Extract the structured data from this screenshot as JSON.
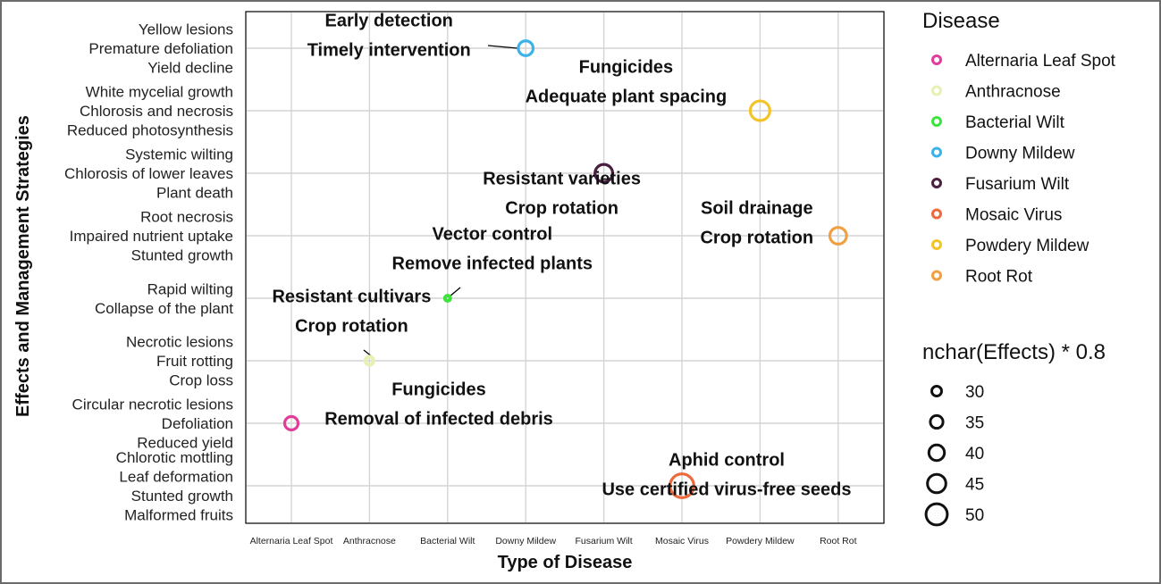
{
  "chart_data": {
    "type": "scatter",
    "xlabel": "Type of Disease",
    "ylabel": "Effects and Management Strategies",
    "categories": [
      "Alternaria Leaf Spot",
      "Anthracnose",
      "Bacterial Wilt",
      "Downy Mildew",
      "Fusarium Wilt",
      "Mosaic Virus",
      "Powdery Mildew",
      "Root Rot"
    ],
    "y_labels": [
      "Chlorotic mottling\nLeaf deformation\nStunted growth\nMalformed fruits",
      "Circular necrotic lesions\nDefoliation\nReduced yield",
      "Necrotic lesions\nFruit rotting\nCrop loss",
      "Rapid wilting\nCollapse of the plant",
      "Root necrosis\nImpaired nutrient uptake\nStunted growth",
      "Systemic wilting\nChlorosis of lower leaves\nPlant death",
      "White mycelial growth\nChlorosis and necrosis\nReduced photosynthesis",
      "Yellow lesions\nPremature defoliation\nYield decline"
    ],
    "points": [
      {
        "disease": "Alternaria Leaf Spot",
        "effects": "Circular necrotic lesions\nDefoliation\nReduced yield",
        "size": 42.4,
        "color": "#e13c9a",
        "label": "Fungicides\nRemoval of infected debris"
      },
      {
        "disease": "Anthracnose",
        "effects": "Necrotic lesions\nFruit rotting\nCrop loss",
        "size": 33.6,
        "color": "#e5f2b3",
        "label": "Resistant cultivars\nCrop rotation"
      },
      {
        "disease": "Bacterial Wilt",
        "effects": "Rapid wilting\nCollapse of the plant",
        "size": 28.8,
        "color": "#3ee33e",
        "label": "Vector control\nRemove infected plants"
      },
      {
        "disease": "Downy Mildew",
        "effects": "Yellow lesions\nPremature defoliation\nYield decline",
        "size": 44.8,
        "color": "#3bb3ea",
        "label": "Early detection\nTimely intervention"
      },
      {
        "disease": "Fusarium Wilt",
        "effects": "Systemic wilting\nChlorosis of lower leaves\nPlant death",
        "size": 49.6,
        "color": "#4a2040",
        "label": "Resistant varieties\nCrop rotation"
      },
      {
        "disease": "Mosaic Virus",
        "effects": "Chlorotic mottling\nLeaf deformation\nStunted growth\nMalformed fruits",
        "size": 60.0,
        "color": "#ec6a3c",
        "label": "Aphid control\nUse certified virus-free seeds"
      },
      {
        "disease": "Powdery Mildew",
        "effects": "White mycelial growth\nChlorosis and necrosis\nReduced photosynthesis",
        "size": 52.8,
        "color": "#f3c428",
        "label": "Fungicides\nAdequate plant spacing"
      },
      {
        "disease": "Root Rot",
        "effects": "Root necrosis\nImpaired nutrient uptake\nStunted growth",
        "size": 48.0,
        "color": "#f0a040",
        "label": "Soil drainage\nCrop rotation"
      }
    ],
    "legend_color": {
      "title": "Disease",
      "entries": [
        {
          "name": "Alternaria Leaf Spot",
          "color": "#e13c9a"
        },
        {
          "name": "Anthracnose",
          "color": "#e5f2b3"
        },
        {
          "name": "Bacterial Wilt",
          "color": "#3ee33e"
        },
        {
          "name": "Downy Mildew",
          "color": "#3bb3ea"
        },
        {
          "name": "Fusarium Wilt",
          "color": "#4a2040"
        },
        {
          "name": "Mosaic Virus",
          "color": "#ec6a3c"
        },
        {
          "name": "Powdery Mildew",
          "color": "#f3c428"
        },
        {
          "name": "Root Rot",
          "color": "#f0a040"
        }
      ]
    },
    "legend_size": {
      "title": "nchar(Effects) * 0.8",
      "entries": [
        30,
        35,
        40,
        45,
        50
      ]
    },
    "legend_position": "right",
    "grid": true
  }
}
